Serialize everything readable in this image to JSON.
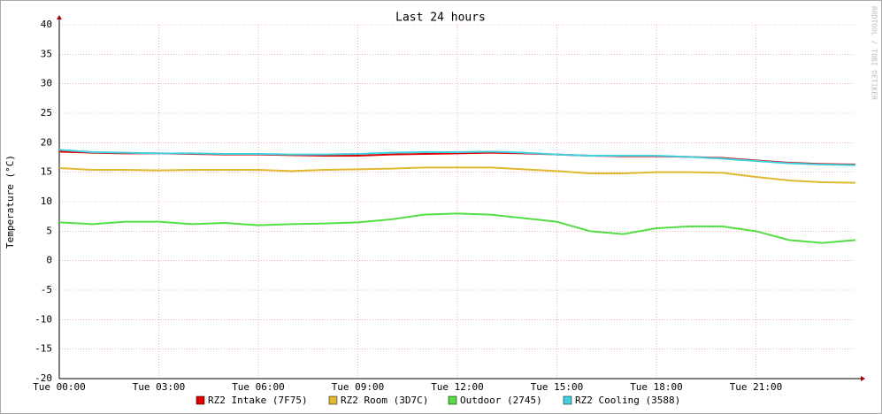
{
  "chart_data": {
    "type": "line",
    "title": "Last 24 hours",
    "y_label": "Temperature (°C)",
    "watermark": "RRDTOOL / TOBI OETIKER",
    "x": [
      0,
      1,
      2,
      3,
      4,
      5,
      6,
      7,
      8,
      9,
      10,
      11,
      12,
      13,
      14,
      15,
      16,
      17,
      18,
      19,
      20,
      21,
      22,
      23,
      24
    ],
    "xlim": [
      0,
      24
    ],
    "xticks": [
      {
        "value": 0,
        "label": "Tue 00:00"
      },
      {
        "value": 3,
        "label": "Tue 03:00"
      },
      {
        "value": 6,
        "label": "Tue 06:00"
      },
      {
        "value": 9,
        "label": "Tue 09:00"
      },
      {
        "value": 12,
        "label": "Tue 12:00"
      },
      {
        "value": 15,
        "label": "Tue 15:00"
      },
      {
        "value": 18,
        "label": "Tue 18:00"
      },
      {
        "value": 21,
        "label": "Tue 21:00"
      }
    ],
    "ylim": [
      -20,
      40
    ],
    "yticks": [
      -20,
      -15,
      -10,
      -5,
      0,
      5,
      10,
      15,
      20,
      25,
      30,
      35,
      40
    ],
    "grid": true,
    "series": [
      {
        "name": "RZ2 Intake (7F75)",
        "color": "#e00000",
        "values": [
          18.5,
          18.3,
          18.2,
          18.2,
          18.1,
          18.0,
          18.0,
          17.9,
          17.8,
          17.8,
          18.0,
          18.1,
          18.2,
          18.3,
          18.2,
          18.0,
          17.8,
          17.7,
          17.7,
          17.6,
          17.4,
          17.0,
          16.6,
          16.4,
          16.3
        ]
      },
      {
        "name": "RZ2 Room (3D7C)",
        "color": "#e0b830",
        "values": [
          15.7,
          15.4,
          15.4,
          15.3,
          15.4,
          15.4,
          15.4,
          15.2,
          15.4,
          15.5,
          15.6,
          15.8,
          15.8,
          15.8,
          15.5,
          15.2,
          14.8,
          14.8,
          15.0,
          15.0,
          14.9,
          14.2,
          13.6,
          13.3,
          13.2
        ]
      },
      {
        "name": "Outdoor (2745)",
        "color": "#55dd44",
        "values": [
          6.5,
          6.2,
          6.6,
          6.6,
          6.2,
          6.4,
          6.0,
          6.2,
          6.3,
          6.5,
          7.0,
          7.8,
          8.0,
          7.8,
          7.2,
          6.6,
          5.0,
          4.5,
          5.5,
          5.8,
          5.8,
          5.0,
          3.5,
          3.0,
          3.5
        ]
      },
      {
        "name": "RZ2 Cooling (3588)",
        "color": "#40d0e0",
        "values": [
          18.8,
          18.4,
          18.3,
          18.2,
          18.2,
          18.1,
          18.1,
          18.0,
          18.0,
          18.1,
          18.3,
          18.4,
          18.4,
          18.5,
          18.3,
          18.0,
          17.8,
          17.8,
          17.8,
          17.6,
          17.3,
          16.9,
          16.5,
          16.3,
          16.2
        ]
      }
    ]
  }
}
